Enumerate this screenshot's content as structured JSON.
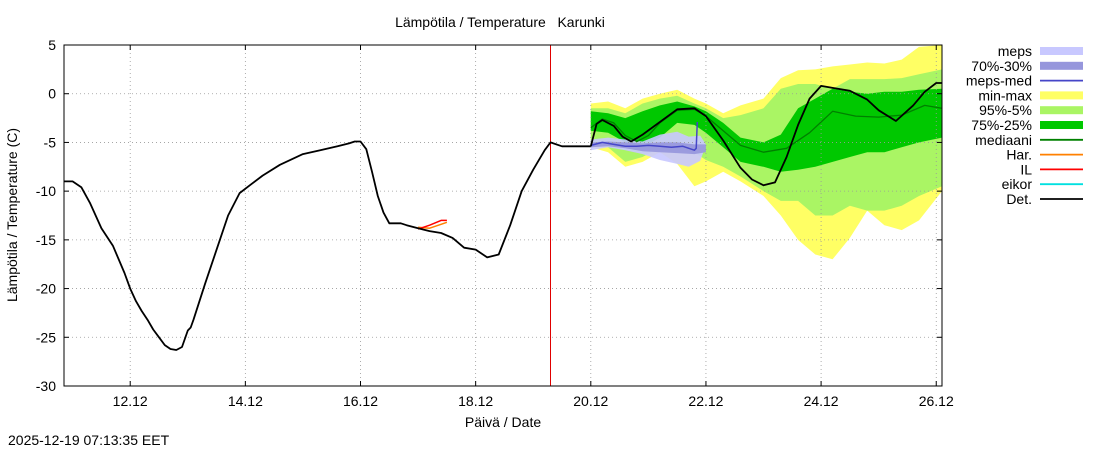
{
  "chart_data": {
    "type": "line",
    "title": "Lämpötila / Temperature   Karunki",
    "xlabel": "Päivä / Date",
    "ylabel": "Lämpötila / Temperature (C)",
    "timestamp": "2025-12-19 07:13:35 EET",
    "xlim": [
      10.85,
      26.1
    ],
    "ylim": [
      -30,
      5
    ],
    "x_unit": "day of December",
    "grid": true,
    "now_marker_x": 19.3,
    "x_ticks": [
      {
        "value": 12,
        "label": "12.12"
      },
      {
        "value": 14,
        "label": "14.12"
      },
      {
        "value": 16,
        "label": "16.12"
      },
      {
        "value": 18,
        "label": "18.12"
      },
      {
        "value": 20,
        "label": "20.12"
      },
      {
        "value": 22,
        "label": "22.12"
      },
      {
        "value": 24,
        "label": "24.12"
      },
      {
        "value": 26,
        "label": "26.12"
      }
    ],
    "y_ticks": [
      5,
      0,
      -5,
      -10,
      -15,
      -20,
      -25,
      -30
    ],
    "legend": [
      {
        "label": "meps",
        "kind": "box",
        "color": "#c8c8ff"
      },
      {
        "label": "70%-30%",
        "kind": "box",
        "color": "#9696dc"
      },
      {
        "label": "meps-med",
        "kind": "line",
        "color": "#4646c8"
      },
      {
        "label": "min-max",
        "kind": "box",
        "color": "#ffff64"
      },
      {
        "label": "95%-5%",
        "kind": "box",
        "color": "#aaf564"
      },
      {
        "label": "75%-25%",
        "kind": "box",
        "color": "#00c800"
      },
      {
        "label": "mediaani",
        "kind": "line",
        "color": "#008000"
      },
      {
        "label": "Har.",
        "kind": "line",
        "color": "#ff8000"
      },
      {
        "label": "IL",
        "kind": "line",
        "color": "#ff0000"
      },
      {
        "label": "eikor",
        "kind": "line",
        "color": "#00e0e0"
      },
      {
        "label": "Det.",
        "kind": "line",
        "color": "#000000"
      }
    ],
    "series": {
      "observed": {
        "name": "Det.",
        "color": "#000000",
        "x": [
          10.85,
          11.0,
          11.15,
          11.3,
          11.5,
          11.7,
          11.9,
          12.0,
          12.1,
          12.2,
          12.3,
          12.4,
          12.5,
          12.6,
          12.7,
          12.8,
          12.9,
          13.0,
          13.05,
          13.1,
          13.3,
          13.5,
          13.7,
          13.9,
          14.1,
          14.3,
          14.6,
          15.0,
          15.3,
          15.6,
          15.8,
          15.9,
          16.0,
          16.1,
          16.2,
          16.3,
          16.4,
          16.5,
          16.6,
          16.7,
          16.8,
          17.0,
          17.2,
          17.4,
          17.6,
          17.8,
          18.0,
          18.2,
          18.4,
          18.6,
          18.8,
          19.0,
          19.2,
          19.3,
          19.5,
          20.0
        ],
        "y": [
          -9.0,
          -9.0,
          -9.6,
          -11.2,
          -13.8,
          -15.6,
          -18.4,
          -20.0,
          -21.3,
          -22.3,
          -23.2,
          -24.2,
          -25.0,
          -25.8,
          -26.2,
          -26.3,
          -26.0,
          -24.3,
          -24.0,
          -23.2,
          -19.5,
          -16.0,
          -12.5,
          -10.2,
          -9.3,
          -8.4,
          -7.3,
          -6.2,
          -5.8,
          -5.4,
          -5.1,
          -4.9,
          -4.9,
          -5.7,
          -8.0,
          -10.5,
          -12.2,
          -13.3,
          -13.3,
          -13.3,
          -13.5,
          -13.8,
          -14.1,
          -14.3,
          -14.8,
          -15.8,
          -16.0,
          -16.8,
          -16.5,
          -13.5,
          -10.0,
          -7.8,
          -5.8,
          -5.0,
          -5.4,
          -5.4
        ]
      },
      "forecast_det": {
        "name": "Det.",
        "color": "#000000",
        "x": [
          20.0,
          20.1,
          20.2,
          20.4,
          20.55,
          20.7,
          20.9,
          21.2,
          21.5,
          21.8,
          22.0,
          22.3,
          22.6,
          22.8,
          23.0,
          23.2,
          23.4,
          23.6,
          23.8,
          24.0,
          24.2,
          24.5,
          24.8,
          25.0,
          25.3,
          25.6,
          25.8,
          26.0,
          26.1
        ],
        "y": [
          -5.4,
          -3.1,
          -2.7,
          -3.3,
          -4.4,
          -4.9,
          -4.2,
          -2.9,
          -1.6,
          -1.5,
          -2.3,
          -4.8,
          -7.6,
          -8.8,
          -9.4,
          -9.1,
          -6.5,
          -3.2,
          -0.5,
          0.8,
          0.6,
          0.3,
          -0.6,
          -1.7,
          -2.8,
          -1.2,
          0.2,
          1.1,
          1.1
        ]
      },
      "mediaani": {
        "name": "mediaani",
        "color": "#008000",
        "x": [
          20.0,
          20.2,
          20.4,
          20.6,
          20.8,
          21.0,
          21.2,
          21.5,
          21.8,
          22.0,
          22.3,
          22.6,
          23.0,
          23.4,
          23.8,
          24.2,
          24.6,
          25.0,
          25.4,
          25.8,
          26.1
        ],
        "y": [
          -3.5,
          -2.6,
          -3.0,
          -4.3,
          -4.9,
          -4.3,
          -3.0,
          -1.7,
          -1.6,
          -2.3,
          -3.8,
          -5.3,
          -6.0,
          -5.6,
          -4.0,
          -1.8,
          -2.3,
          -2.4,
          -2.2,
          -1.2,
          -1.5
        ]
      },
      "meps_med": {
        "name": "meps-med",
        "color": "#4646c8",
        "x": [
          20.0,
          20.2,
          20.4,
          20.6,
          20.8,
          21.0,
          21.2,
          21.4,
          21.6,
          21.8,
          21.83,
          21.85
        ],
        "y": [
          -5.3,
          -5.0,
          -5.2,
          -5.4,
          -5.4,
          -5.3,
          -5.4,
          -5.5,
          -5.4,
          -5.8,
          -5.6,
          -2.9
        ]
      },
      "harmonie": {
        "name": "Har.",
        "color": "#ff8000",
        "x": [
          17.0,
          17.2,
          17.4,
          17.5
        ],
        "y": [
          -13.7,
          -13.8,
          -13.4,
          -13.2
        ]
      },
      "il": {
        "name": "IL",
        "color": "#ff0000",
        "x": [
          17.0,
          17.2,
          17.4,
          17.5
        ],
        "y": [
          -13.9,
          -13.5,
          -13.0,
          -13.0
        ]
      }
    },
    "bands": {
      "x": [
        20.0,
        20.3,
        20.6,
        20.9,
        21.2,
        21.5,
        21.8,
        22.0,
        22.3,
        22.6,
        23.0,
        23.3,
        23.6,
        23.9,
        24.2,
        24.5,
        24.8,
        25.1,
        25.4,
        25.7,
        26.1
      ],
      "min_max": {
        "label": "min-max",
        "color": "#ffff64",
        "upper": [
          -1.0,
          -0.8,
          -1.5,
          -0.5,
          0.0,
          0.4,
          -0.5,
          -1.0,
          -2.0,
          -1.2,
          -0.5,
          1.6,
          2.4,
          2.5,
          2.8,
          3.0,
          3.2,
          3.1,
          3.5,
          4.8,
          5.0
        ],
        "lower": [
          -5.5,
          -6.0,
          -7.5,
          -7.0,
          -6.0,
          -7.2,
          -9.5,
          -9.0,
          -8.0,
          -9.0,
          -10.5,
          -12.5,
          -15.0,
          -16.5,
          -17.0,
          -14.8,
          -12.0,
          -13.5,
          -14.0,
          -13.0,
          -10.0
        ]
      },
      "p95_5": {
        "label": "95%-5%",
        "color": "#aaf564",
        "upper": [
          -1.5,
          -1.5,
          -2.0,
          -1.0,
          -0.5,
          -0.2,
          -1.0,
          -1.5,
          -2.5,
          -2.2,
          -1.5,
          0.5,
          1.0,
          1.0,
          0.5,
          1.5,
          1.5,
          1.5,
          1.6,
          2.0,
          2.5
        ],
        "lower": [
          -5.0,
          -5.5,
          -7.0,
          -6.5,
          -5.5,
          -5.0,
          -6.0,
          -6.8,
          -7.5,
          -8.5,
          -10.0,
          -11.0,
          -11.0,
          -12.5,
          -12.5,
          -11.5,
          -12.0,
          -12.0,
          -11.5,
          -10.5,
          -9.5
        ]
      },
      "p75_25": {
        "label": "75%-25%",
        "color": "#00c800",
        "upper": [
          -1.8,
          -2.0,
          -2.5,
          -1.8,
          -1.2,
          -0.8,
          -1.3,
          -1.8,
          -3.0,
          -4.5,
          -5.0,
          -4.2,
          -1.5,
          -0.5,
          0.5,
          0.2,
          0.0,
          0.2,
          0.2,
          0.4,
          0.5
        ],
        "lower": [
          -3.8,
          -4.0,
          -5.0,
          -5.5,
          -4.5,
          -3.0,
          -3.2,
          -4.0,
          -5.5,
          -7.0,
          -7.5,
          -8.0,
          -7.8,
          -7.5,
          -7.0,
          -6.5,
          -6.0,
          -6.0,
          -5.5,
          -5.0,
          -4.5
        ]
      },
      "meps": {
        "label": "meps",
        "color": "#c8c8ff",
        "x": [
          20.0,
          20.3,
          20.6,
          20.9,
          21.2,
          21.5,
          21.7,
          21.9,
          22.0
        ],
        "upper": [
          -4.7,
          -4.5,
          -4.7,
          -4.9,
          -4.2,
          -3.9,
          -4.4,
          -4.3,
          -5.2
        ],
        "lower": [
          -5.8,
          -5.5,
          -5.8,
          -6.2,
          -6.8,
          -7.2,
          -7.5,
          -6.9,
          -5.3
        ]
      },
      "meps_70_30": {
        "label": "70%-30%",
        "color": "#9696dc",
        "x": [
          20.0,
          20.3,
          20.6,
          20.9,
          21.2,
          21.5,
          21.8,
          22.0
        ],
        "upper": [
          -5.0,
          -4.9,
          -5.0,
          -5.1,
          -5.0,
          -5.0,
          -5.2,
          -5.2
        ],
        "lower": [
          -5.5,
          -5.4,
          -5.6,
          -5.9,
          -6.0,
          -6.1,
          -6.2,
          -6.0
        ]
      }
    }
  }
}
